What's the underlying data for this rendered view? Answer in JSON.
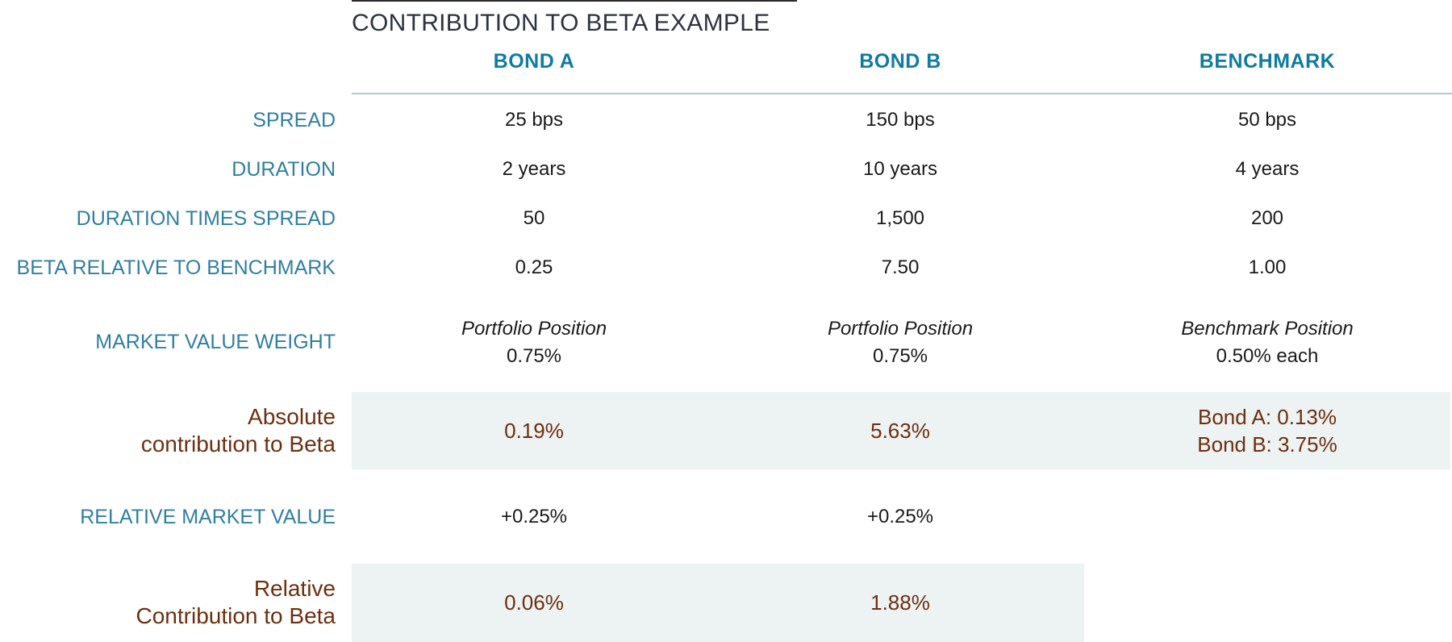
{
  "title": "CONTRIBUTION TO BETA EXAMPLE",
  "columns": {
    "bond_a": "BOND A",
    "bond_b": "BOND B",
    "benchmark": "BENCHMARK"
  },
  "rows": {
    "spread": {
      "label": "SPREAD",
      "bond_a": "25 bps",
      "bond_b": "150 bps",
      "benchmark": "50 bps"
    },
    "duration": {
      "label": "DURATION",
      "bond_a": "2 years",
      "bond_b": "10 years",
      "benchmark": "4 years"
    },
    "dts": {
      "label": "DURATION TIMES SPREAD",
      "bond_a": "50",
      "bond_b": "1,500",
      "benchmark": "200"
    },
    "beta": {
      "label": "BETA RELATIVE TO BENCHMARK",
      "bond_a": "0.25",
      "bond_b": "7.50",
      "benchmark": "1.00"
    },
    "mv_weight": {
      "label": "MARKET VALUE WEIGHT",
      "bond_a": {
        "caption": "Portfolio Position",
        "value": "0.75%"
      },
      "bond_b": {
        "caption": "Portfolio Position",
        "value": "0.75%"
      },
      "benchmark": {
        "caption": "Benchmark Position",
        "value": "0.50% each"
      }
    },
    "abs_contrib": {
      "label_line1": "Absolute",
      "label_line2": "contribution to Beta",
      "bond_a": "0.19%",
      "bond_b": "5.63%",
      "benchmark_line1": "Bond A: 0.13%",
      "benchmark_line2": "Bond B: 3.75%"
    },
    "rel_mv": {
      "label": "RELATIVE MARKET VALUE",
      "bond_a": "+0.25%",
      "bond_b": "+0.25%"
    },
    "rel_contrib": {
      "label_line1": "Relative",
      "label_line2": "Contribution to Beta",
      "bond_a": "0.06%",
      "bond_b": "1.88%"
    }
  },
  "colors": {
    "header_blue": "#0f7ba3",
    "label_blue": "#2f7fa3",
    "brown": "#6e2f0e",
    "shade": "#edf2f3"
  }
}
